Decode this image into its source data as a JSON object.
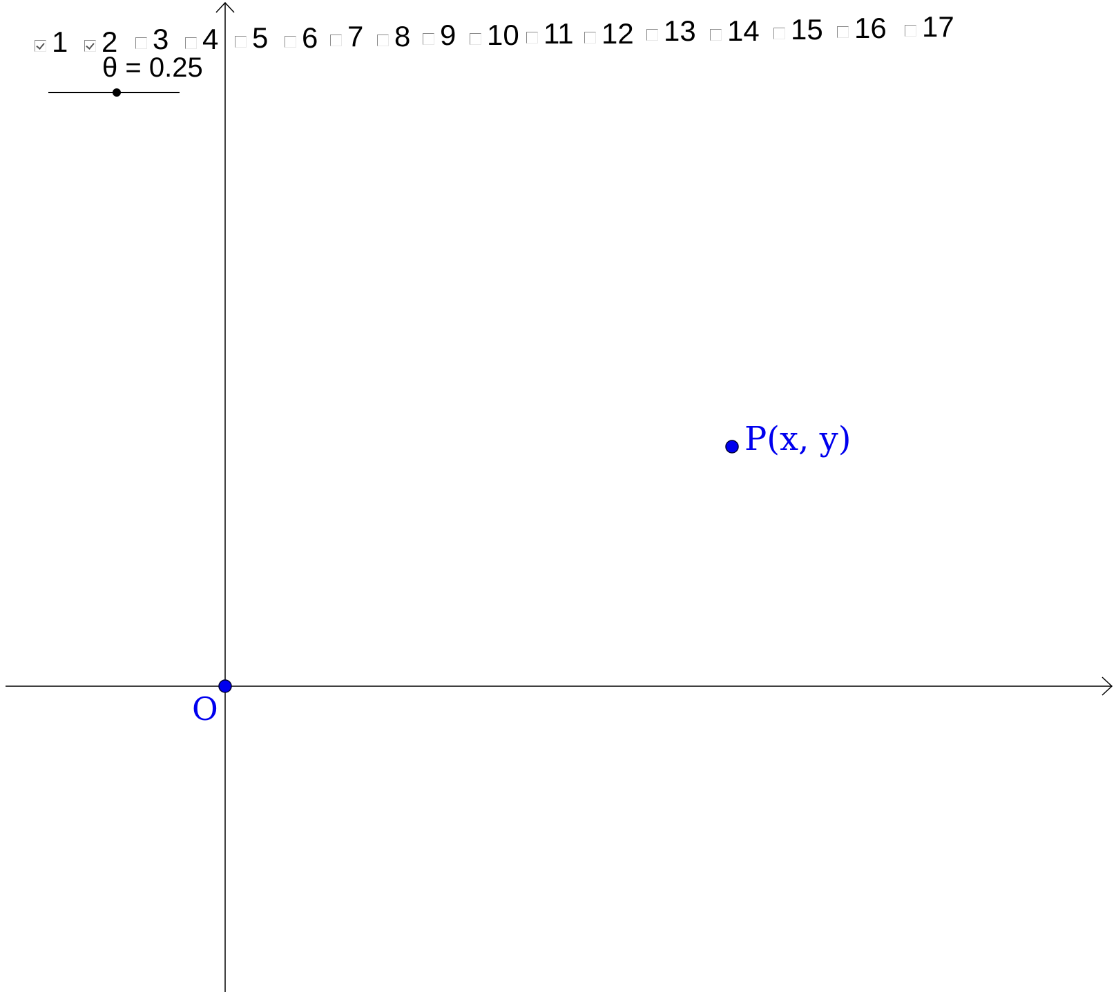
{
  "checkboxes": [
    {
      "label": "1",
      "checked": true
    },
    {
      "label": "2",
      "checked": true
    },
    {
      "label": "3",
      "checked": false
    },
    {
      "label": "4",
      "checked": false
    },
    {
      "label": "5",
      "checked": false
    },
    {
      "label": "6",
      "checked": false
    },
    {
      "label": "7",
      "checked": false
    },
    {
      "label": "8",
      "checked": false
    },
    {
      "label": "9",
      "checked": false
    },
    {
      "label": "10",
      "checked": false
    },
    {
      "label": "11",
      "checked": false
    },
    {
      "label": "12",
      "checked": false
    },
    {
      "label": "13",
      "checked": false
    },
    {
      "label": "14",
      "checked": false
    },
    {
      "label": "15",
      "checked": false
    },
    {
      "label": "16",
      "checked": false
    },
    {
      "label": "17",
      "checked": false
    }
  ],
  "slider": {
    "label": "θ = 0.25",
    "value": 0.25
  },
  "points": {
    "origin_label": "O",
    "p_label": "P(x, y)"
  },
  "colors": {
    "point": "#0000ee",
    "axis": "#000000"
  }
}
